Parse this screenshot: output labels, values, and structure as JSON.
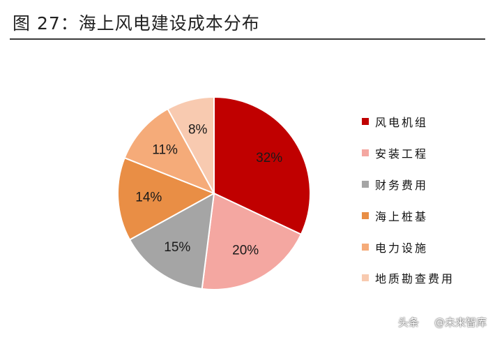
{
  "title": "图 27：海上风电建设成本分布",
  "chart_data": {
    "type": "pie",
    "title": "图 27：海上风电建设成本分布",
    "series": [
      {
        "name": "风电机组",
        "value": 32,
        "label": "32%",
        "color": "#c00000"
      },
      {
        "name": "安装工程",
        "value": 20,
        "label": "20%",
        "color": "#f4a7a1"
      },
      {
        "name": "财务费用",
        "value": 15,
        "label": "15%",
        "color": "#a5a5a5"
      },
      {
        "name": "海上桩基",
        "value": 14,
        "label": "14%",
        "color": "#e98e45"
      },
      {
        "name": "电力设施",
        "value": 11,
        "label": "11%",
        "color": "#f5ab79"
      },
      {
        "name": "地质勘查费用",
        "value": 8,
        "label": "8%",
        "color": "#f8cab0"
      }
    ],
    "start_angle": "12 o'clock",
    "direction": "clockwise",
    "legend_position": "right"
  },
  "watermark": {
    "prefix": "头条",
    "handle": "@未来智库"
  }
}
